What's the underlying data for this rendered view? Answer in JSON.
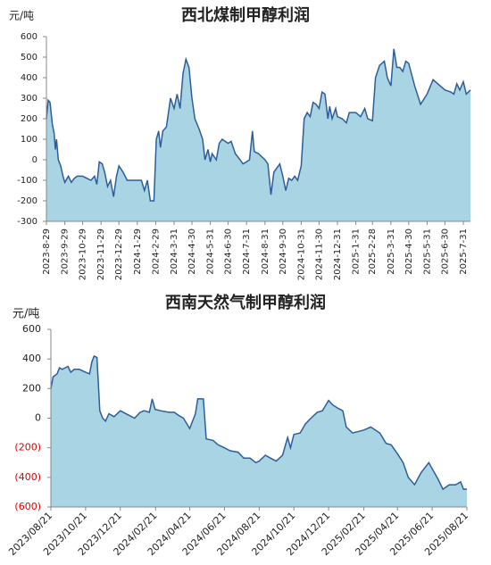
{
  "chart_data": [
    {
      "type": "area",
      "title": "西北煤制甲醇利润",
      "y_label": "元/吨",
      "color": "#a8d4e4",
      "line_color": "#2f5d96",
      "x": [
        "2023-08-29",
        "2023-09-01",
        "2023-09-04",
        "2023-09-08",
        "2023-09-11",
        "2023-09-13",
        "2023-09-15",
        "2023-09-18",
        "2023-09-22",
        "2023-09-26",
        "2023-09-29",
        "2023-10-05",
        "2023-10-10",
        "2023-10-15",
        "2023-10-20",
        "2023-10-29",
        "2023-11-05",
        "2023-11-12",
        "2023-11-18",
        "2023-11-22",
        "2023-11-26",
        "2023-12-01",
        "2023-12-05",
        "2023-12-10",
        "2023-12-15",
        "2023-12-20",
        "2023-12-25",
        "2023-12-29",
        "2024-01-05",
        "2024-01-12",
        "2024-01-20",
        "2024-01-29",
        "2024-02-05",
        "2024-02-10",
        "2024-02-15",
        "2024-02-20",
        "2024-02-26",
        "2024-03-01",
        "2024-03-05",
        "2024-03-08",
        "2024-03-12",
        "2024-03-18",
        "2024-03-25",
        "2024-03-31",
        "2024-04-05",
        "2024-04-10",
        "2024-04-15",
        "2024-04-20",
        "2024-04-25",
        "2024-04-30",
        "2024-05-05",
        "2024-05-12",
        "2024-05-18",
        "2024-05-22",
        "2024-05-27",
        "2024-05-31",
        "2024-06-03",
        "2024-06-10",
        "2024-06-15",
        "2024-06-20",
        "2024-06-30",
        "2024-07-05",
        "2024-07-12",
        "2024-07-20",
        "2024-07-25",
        "2024-07-31",
        "2024-08-05",
        "2024-08-10",
        "2024-08-13",
        "2024-08-20",
        "2024-08-31",
        "2024-09-05",
        "2024-09-10",
        "2024-09-15",
        "2024-09-20",
        "2024-09-25",
        "2024-09-30",
        "2024-10-05",
        "2024-10-10",
        "2024-10-15",
        "2024-10-20",
        "2024-10-25",
        "2024-10-31",
        "2024-11-05",
        "2024-11-10",
        "2024-11-15",
        "2024-11-20",
        "2024-11-25",
        "2024-11-30",
        "2024-12-05",
        "2024-12-10",
        "2024-12-15",
        "2024-12-18",
        "2024-12-22",
        "2024-12-28",
        "2024-12-31",
        "2025-01-08",
        "2025-01-15",
        "2025-01-20",
        "2025-01-31",
        "2025-02-08",
        "2025-02-15",
        "2025-02-20",
        "2025-02-28",
        "2025-03-05",
        "2025-03-12",
        "2025-03-20",
        "2025-03-25",
        "2025-03-31",
        "2025-04-05",
        "2025-04-10",
        "2025-04-15",
        "2025-04-20",
        "2025-04-25",
        "2025-04-30",
        "2025-05-10",
        "2025-05-20",
        "2025-05-31",
        "2025-06-10",
        "2025-06-30",
        "2025-07-10",
        "2025-07-15",
        "2025-07-20",
        "2025-07-25",
        "2025-07-31",
        "2025-08-05",
        "2025-08-12"
      ],
      "values": [
        200,
        290,
        280,
        170,
        130,
        50,
        100,
        0,
        -30,
        -80,
        -110,
        -80,
        -110,
        -90,
        -80,
        -80,
        -90,
        -100,
        -80,
        -120,
        -10,
        -20,
        -60,
        -130,
        -100,
        -180,
        -80,
        -30,
        -60,
        -100,
        -100,
        -100,
        -100,
        -150,
        -100,
        -200,
        -200,
        100,
        140,
        60,
        140,
        160,
        300,
        250,
        320,
        250,
        420,
        490,
        450,
        300,
        200,
        150,
        100,
        0,
        50,
        -10,
        30,
        0,
        80,
        100,
        80,
        90,
        30,
        0,
        -20,
        -10,
        0,
        140,
        40,
        30,
        0,
        -20,
        -170,
        -60,
        -40,
        -20,
        -80,
        -150,
        -90,
        -100,
        -80,
        -100,
        -30,
        200,
        230,
        210,
        280,
        270,
        250,
        330,
        320,
        200,
        260,
        200,
        250,
        210,
        200,
        180,
        230,
        230,
        210,
        250,
        200,
        190,
        400,
        460,
        480,
        400,
        360,
        540,
        450,
        450,
        430,
        480,
        470,
        360,
        270,
        320,
        390,
        340,
        330,
        320,
        370,
        340,
        380,
        320,
        340
      ],
      "xlim": [
        "2023-08-29",
        "2025-08-12"
      ],
      "xticks": [
        {
          "value": "2023-08-29",
          "label": "2023-8-29"
        },
        {
          "value": "2023-09-29",
          "label": "2023-9-29"
        },
        {
          "value": "2023-10-29",
          "label": "2023-10-29"
        },
        {
          "value": "2023-11-29",
          "label": "2023-11-29"
        },
        {
          "value": "2023-12-29",
          "label": "2023-12-29"
        },
        {
          "value": "2024-01-29",
          "label": "2024-1-29"
        },
        {
          "value": "2024-02-29",
          "label": "2024-2-29"
        },
        {
          "value": "2024-03-31",
          "label": "2024-3-31"
        },
        {
          "value": "2024-04-30",
          "label": "2024-4-30"
        },
        {
          "value": "2024-05-31",
          "label": "2024-5-31"
        },
        {
          "value": "2024-06-30",
          "label": "2024-6-30"
        },
        {
          "value": "2024-07-31",
          "label": "2024-7-31"
        },
        {
          "value": "2024-08-31",
          "label": "2024-8-31"
        },
        {
          "value": "2024-09-30",
          "label": "2024-9-30"
        },
        {
          "value": "2024-10-31",
          "label": "2024-10-31"
        },
        {
          "value": "2024-11-30",
          "label": "2024-11-30"
        },
        {
          "value": "2024-12-31",
          "label": "2024-12-31"
        },
        {
          "value": "2025-01-31",
          "label": "2025-1-31"
        },
        {
          "value": "2025-02-28",
          "label": "2025-2-28"
        },
        {
          "value": "2025-03-31",
          "label": "2025-3-31"
        },
        {
          "value": "2025-04-30",
          "label": "2025-4-30"
        },
        {
          "value": "2025-05-31",
          "label": "2025-5-31"
        },
        {
          "value": "2025-06-30",
          "label": "2025-6-30"
        },
        {
          "value": "2025-07-31",
          "label": "2025-7-31"
        }
      ],
      "ylim": [
        -300,
        600
      ],
      "yticks": [
        -300,
        -200,
        -100,
        0,
        100,
        200,
        300,
        400,
        500,
        600
      ]
    },
    {
      "type": "area",
      "title": "西南天然气制甲醇利润",
      "y_label": "元/吨",
      "color": "#a8d4e4",
      "line_color": "#2f5d96",
      "negative_tick_label_color": "#e00000",
      "x": [
        "2023-08-21",
        "2023-08-25",
        "2023-09-01",
        "2023-09-05",
        "2023-09-10",
        "2023-09-20",
        "2023-09-25",
        "2023-10-01",
        "2023-10-10",
        "2023-10-21",
        "2023-10-28",
        "2023-11-01",
        "2023-11-05",
        "2023-11-10",
        "2023-11-15",
        "2023-11-20",
        "2023-11-25",
        "2023-12-01",
        "2023-12-10",
        "2023-12-21",
        "2024-01-05",
        "2024-01-15",
        "2024-01-25",
        "2024-02-01",
        "2024-02-10",
        "2024-02-15",
        "2024-02-20",
        "2024-03-01",
        "2024-03-15",
        "2024-03-25",
        "2024-04-01",
        "2024-04-10",
        "2024-04-21",
        "2024-05-01",
        "2024-05-05",
        "2024-05-15",
        "2024-05-20",
        "2024-06-01",
        "2024-06-10",
        "2024-06-21",
        "2024-07-01",
        "2024-07-15",
        "2024-07-25",
        "2024-08-05",
        "2024-08-15",
        "2024-08-21",
        "2024-09-01",
        "2024-09-10",
        "2024-09-20",
        "2024-10-01",
        "2024-10-10",
        "2024-10-15",
        "2024-10-21",
        "2024-11-01",
        "2024-11-10",
        "2024-11-20",
        "2024-12-01",
        "2024-12-10",
        "2024-12-21",
        "2024-12-28",
        "2025-01-05",
        "2025-01-15",
        "2025-01-21",
        "2025-02-01",
        "2025-02-21",
        "2025-03-05",
        "2025-03-21",
        "2025-04-01",
        "2025-04-10",
        "2025-04-21",
        "2025-05-01",
        "2025-05-10",
        "2025-05-21",
        "2025-06-01",
        "2025-06-15",
        "2025-07-01",
        "2025-07-10",
        "2025-07-21",
        "2025-08-01",
        "2025-08-10",
        "2025-08-15",
        "2025-08-21"
      ],
      "values": [
        200,
        280,
        300,
        340,
        330,
        350,
        310,
        330,
        330,
        310,
        300,
        380,
        420,
        410,
        50,
        0,
        -20,
        30,
        10,
        50,
        20,
        0,
        40,
        50,
        40,
        130,
        60,
        50,
        40,
        40,
        20,
        0,
        -70,
        30,
        130,
        130,
        -140,
        -150,
        -180,
        -200,
        -220,
        -230,
        -270,
        -270,
        -300,
        -290,
        -250,
        -270,
        -290,
        -250,
        -130,
        -200,
        -110,
        -100,
        -40,
        0,
        40,
        50,
        120,
        90,
        70,
        50,
        -60,
        -100,
        -80,
        -60,
        -100,
        -170,
        -180,
        -240,
        -300,
        -400,
        -450,
        -370,
        -300,
        -410,
        -480,
        -450,
        -450,
        -430,
        -480,
        -480
      ],
      "xlim": [
        "2023-08-21",
        "2025-08-21"
      ],
      "xticks": [
        {
          "value": "2023-08-21",
          "label": "2023/08/21"
        },
        {
          "value": "2023-10-21",
          "label": "2023/10/21"
        },
        {
          "value": "2023-12-21",
          "label": "2023/12/21"
        },
        {
          "value": "2024-02-21",
          "label": "2024/02/21"
        },
        {
          "value": "2024-04-21",
          "label": "2024/04/21"
        },
        {
          "value": "2024-06-21",
          "label": "2024/06/21"
        },
        {
          "value": "2024-08-21",
          "label": "2024/08/21"
        },
        {
          "value": "2024-10-21",
          "label": "2024/10/21"
        },
        {
          "value": "2024-12-21",
          "label": "2024/12/21"
        },
        {
          "value": "2025-02-21",
          "label": "2025/02/21"
        },
        {
          "value": "2025-04-21",
          "label": "2025/04/21"
        },
        {
          "value": "2025-06-21",
          "label": "2025/06/21"
        },
        {
          "value": "2025-08-21",
          "label": "2025/08/21"
        }
      ],
      "ylim": [
        -600,
        600
      ],
      "yticks": [
        600,
        400,
        200,
        0,
        {
          "value": -200,
          "label": "(200)"
        },
        {
          "value": -400,
          "label": "(400)"
        },
        {
          "value": -600,
          "label": "(600)"
        }
      ]
    }
  ]
}
